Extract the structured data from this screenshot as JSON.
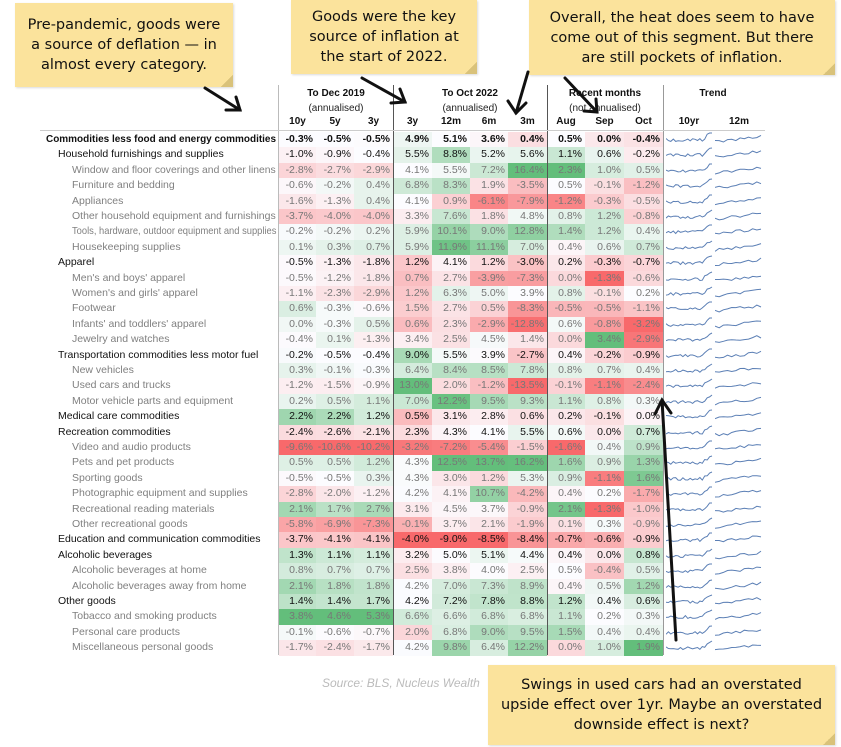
{
  "callouts": {
    "prepandemic": "Pre-pandemic, goods were a source of deflation — in almost every category.",
    "start2022": "Goods were the key source of inflation at the start of 2022.",
    "overall": "Overall, the heat does seem to have come out of this segment. But there are still pockets of inflation.",
    "usedcars": "Swings in used cars had an overstated upside effect over 1yr. Maybe an overstated downside effect is next?"
  },
  "header": {
    "group1": "To Dec 2019",
    "group1_sub": "(annualised)",
    "group2": "To Oct 2022",
    "group2_sub": "(annualised)",
    "group3": "Recent months",
    "group3_sub": "(not annualised)",
    "group4": "Trend",
    "columns": [
      "10y",
      "5y",
      "3y",
      "3y",
      "12m",
      "6m",
      "3m",
      "Aug",
      "Sep",
      "Oct",
      "10yr",
      "12m"
    ]
  },
  "colors": {
    "negative": "#F8696B",
    "neutral": "#FCFCFF",
    "positive": "#63BE7B",
    "callout": "#FBE39C",
    "sparkline": "#5B7FB5"
  },
  "source": "Source: BLS, Nucleus Wealth",
  "rows": [
    {
      "label": "Commodities less food and energy commodities",
      "level": 0,
      "values": [
        "-0.3%",
        "-0.5%",
        "-0.5%",
        "4.9%",
        "5.1%",
        "3.6%",
        "0.4%",
        "0.5%",
        "0.0%",
        "-0.4%"
      ]
    },
    {
      "label": "Household furnishings and supplies",
      "level": 1,
      "values": [
        "-1.0%",
        "-0.9%",
        "-0.4%",
        "5.5%",
        "8.8%",
        "5.2%",
        "5.6%",
        "1.1%",
        "0.6%",
        "-0.2%"
      ]
    },
    {
      "label": "Window and floor coverings and other linens",
      "level": 2,
      "values": [
        "-2.8%",
        "-2.7%",
        "-2.9%",
        "4.1%",
        "5.5%",
        "7.2%",
        "16.4%",
        "2.3%",
        "1.0%",
        "0.5%"
      ]
    },
    {
      "label": "Furniture and bedding",
      "level": 2,
      "values": [
        "-0.6%",
        "-0.2%",
        "0.4%",
        "6.8%",
        "8.3%",
        "1.9%",
        "-3.5%",
        "0.5%",
        "-0.1%",
        "-1.2%"
      ]
    },
    {
      "label": "Appliances",
      "level": 2,
      "values": [
        "-1.6%",
        "-1.3%",
        "0.4%",
        "4.1%",
        "0.9%",
        "-6.1%",
        "-7.9%",
        "-1.2%",
        "-0.3%",
        "-0.5%"
      ]
    },
    {
      "label": "Other household equipment and furnishings",
      "level": 2,
      "values": [
        "-3.7%",
        "-4.0%",
        "-4.0%",
        "3.3%",
        "7.6%",
        "1.8%",
        "4.8%",
        "0.8%",
        "1.2%",
        "-0.8%"
      ]
    },
    {
      "label": "Tools, hardware, outdoor equipment and supplies",
      "level": 2,
      "values": [
        "-0.2%",
        "-0.2%",
        "0.2%",
        "5.9%",
        "10.1%",
        "9.0%",
        "12.8%",
        "1.4%",
        "1.2%",
        "0.4%"
      ]
    },
    {
      "label": "Housekeeping supplies",
      "level": 2,
      "values": [
        "0.1%",
        "0.3%",
        "0.7%",
        "5.9%",
        "11.9%",
        "11.1%",
        "7.0%",
        "0.4%",
        "0.6%",
        "0.7%"
      ]
    },
    {
      "label": "Apparel",
      "level": 1,
      "values": [
        "-0.5%",
        "-1.3%",
        "-1.8%",
        "1.2%",
        "4.1%",
        "1.2%",
        "-3.0%",
        "0.2%",
        "-0.3%",
        "-0.7%"
      ]
    },
    {
      "label": "Men's and boys' apparel",
      "level": 2,
      "values": [
        "-0.5%",
        "-1.2%",
        "-1.8%",
        "0.7%",
        "2.7%",
        "-3.9%",
        "-7.3%",
        "0.0%",
        "-1.3%",
        "-0.6%"
      ]
    },
    {
      "label": "Women's and girls' apparel",
      "level": 2,
      "values": [
        "-1.1%",
        "-2.3%",
        "-2.9%",
        "1.2%",
        "6.3%",
        "5.0%",
        "3.9%",
        "0.8%",
        "-0.1%",
        "0.2%"
      ]
    },
    {
      "label": "Footwear",
      "level": 2,
      "values": [
        "0.6%",
        "-0.3%",
        "-0.6%",
        "1.5%",
        "2.7%",
        "0.5%",
        "-8.3%",
        "-0.5%",
        "-0.5%",
        "-1.1%"
      ]
    },
    {
      "label": "Infants' and toddlers' apparel",
      "level": 2,
      "values": [
        "0.0%",
        "-0.3%",
        "0.5%",
        "0.6%",
        "2.3%",
        "-2.9%",
        "-12.8%",
        "0.6%",
        "-0.8%",
        "-3.2%"
      ]
    },
    {
      "label": "Jewelry and watches",
      "level": 2,
      "values": [
        "-0.4%",
        "0.1%",
        "-1.3%",
        "3.4%",
        "2.5%",
        "4.5%",
        "1.4%",
        "0.0%",
        "3.4%",
        "-2.9%"
      ]
    },
    {
      "label": "Transportation commodities less motor fuel",
      "level": 1,
      "values": [
        "-0.2%",
        "-0.5%",
        "-0.4%",
        "9.0%",
        "5.5%",
        "3.9%",
        "-2.7%",
        "0.4%",
        "-0.2%",
        "-0.9%"
      ]
    },
    {
      "label": "New vehicles",
      "level": 2,
      "values": [
        "0.3%",
        "-0.1%",
        "-0.3%",
        "6.4%",
        "8.4%",
        "8.5%",
        "7.8%",
        "0.8%",
        "0.7%",
        "0.4%"
      ]
    },
    {
      "label": "Used cars and trucks",
      "level": 2,
      "values": [
        "-1.2%",
        "-1.5%",
        "-0.9%",
        "13.0%",
        "2.0%",
        "-1.2%",
        "-13.5%",
        "-0.1%",
        "-1.1%",
        "-2.4%"
      ]
    },
    {
      "label": "Motor vehicle parts and equipment",
      "level": 2,
      "values": [
        "0.2%",
        "0.5%",
        "1.1%",
        "7.0%",
        "12.2%",
        "9.5%",
        "9.3%",
        "1.1%",
        "0.8%",
        "0.3%"
      ]
    },
    {
      "label": "Medical care commodities",
      "level": 1,
      "values": [
        "2.2%",
        "2.2%",
        "1.2%",
        "0.5%",
        "3.1%",
        "2.8%",
        "0.6%",
        "0.2%",
        "-0.1%",
        "0.0%"
      ]
    },
    {
      "label": "Recreation commodities",
      "level": 1,
      "values": [
        "-2.4%",
        "-2.6%",
        "-2.1%",
        "2.3%",
        "4.3%",
        "4.1%",
        "5.5%",
        "0.6%",
        "0.0%",
        "0.7%"
      ]
    },
    {
      "label": "Video and audio products",
      "level": 2,
      "values": [
        "-9.6%",
        "-10.6%",
        "-10.2%",
        "-3.2%",
        "-7.2%",
        "-5.4%",
        "-1.5%",
        "-1.6%",
        "0.4%",
        "0.9%"
      ]
    },
    {
      "label": "Pets and pet products",
      "level": 2,
      "values": [
        "0.5%",
        "0.5%",
        "1.2%",
        "4.3%",
        "12.5%",
        "13.7%",
        "16.2%",
        "1.6%",
        "0.9%",
        "1.3%"
      ]
    },
    {
      "label": "Sporting goods",
      "level": 2,
      "values": [
        "-0.5%",
        "-0.5%",
        "0.3%",
        "4.3%",
        "3.0%",
        "1.2%",
        "5.3%",
        "0.9%",
        "-1.1%",
        "1.6%"
      ]
    },
    {
      "label": "Photographic equipment and supplies",
      "level": 2,
      "values": [
        "-2.8%",
        "-2.0%",
        "-1.2%",
        "4.2%",
        "4.1%",
        "10.7%",
        "-4.2%",
        "0.4%",
        "0.2%",
        "-1.7%"
      ]
    },
    {
      "label": "Recreational reading materials",
      "level": 2,
      "values": [
        "2.1%",
        "1.7%",
        "2.7%",
        "3.1%",
        "4.5%",
        "3.7%",
        "-0.9%",
        "2.1%",
        "-1.3%",
        "-1.0%"
      ]
    },
    {
      "label": "Other recreational goods",
      "level": 2,
      "values": [
        "-5.8%",
        "-6.9%",
        "-7.3%",
        "-0.1%",
        "3.7%",
        "2.1%",
        "-1.9%",
        "0.1%",
        "0.3%",
        "-0.9%"
      ]
    },
    {
      "label": "Education and communication commodities",
      "level": 1,
      "values": [
        "-3.7%",
        "-4.1%",
        "-4.1%",
        "-4.0%",
        "-9.0%",
        "-8.5%",
        "-8.4%",
        "-0.7%",
        "-0.6%",
        "-0.9%"
      ]
    },
    {
      "label": "Alcoholic beverages",
      "level": 1,
      "values": [
        "1.3%",
        "1.1%",
        "1.1%",
        "3.2%",
        "5.0%",
        "5.1%",
        "4.4%",
        "0.4%",
        "0.0%",
        "0.8%"
      ]
    },
    {
      "label": "Alcoholic beverages at home",
      "level": 2,
      "values": [
        "0.8%",
        "0.7%",
        "0.7%",
        "2.5%",
        "3.8%",
        "4.0%",
        "2.5%",
        "0.5%",
        "-0.4%",
        "0.5%"
      ]
    },
    {
      "label": "Alcoholic beverages away from home",
      "level": 2,
      "values": [
        "2.1%",
        "1.8%",
        "1.8%",
        "4.2%",
        "7.0%",
        "7.3%",
        "8.9%",
        "0.4%",
        "0.5%",
        "1.2%"
      ]
    },
    {
      "label": "Other goods",
      "level": 1,
      "values": [
        "1.4%",
        "1.4%",
        "1.7%",
        "4.2%",
        "7.2%",
        "7.8%",
        "8.8%",
        "1.2%",
        "0.4%",
        "0.6%"
      ]
    },
    {
      "label": "Tobacco and smoking products",
      "level": 2,
      "values": [
        "3.8%",
        "4.6%",
        "5.3%",
        "6.6%",
        "6.6%",
        "6.8%",
        "6.8%",
        "1.1%",
        "0.2%",
        "0.3%"
      ]
    },
    {
      "label": "Personal care products",
      "level": 2,
      "values": [
        "-0.1%",
        "-0.6%",
        "-0.7%",
        "2.0%",
        "6.8%",
        "9.0%",
        "9.5%",
        "1.5%",
        "0.4%",
        "0.4%"
      ]
    },
    {
      "label": "Miscellaneous personal goods",
      "level": 2,
      "values": [
        "-1.7%",
        "-2.4%",
        "-1.7%",
        "4.2%",
        "9.8%",
        "6.4%",
        "12.2%",
        "0.0%",
        "1.0%",
        "1.9%"
      ]
    }
  ]
}
